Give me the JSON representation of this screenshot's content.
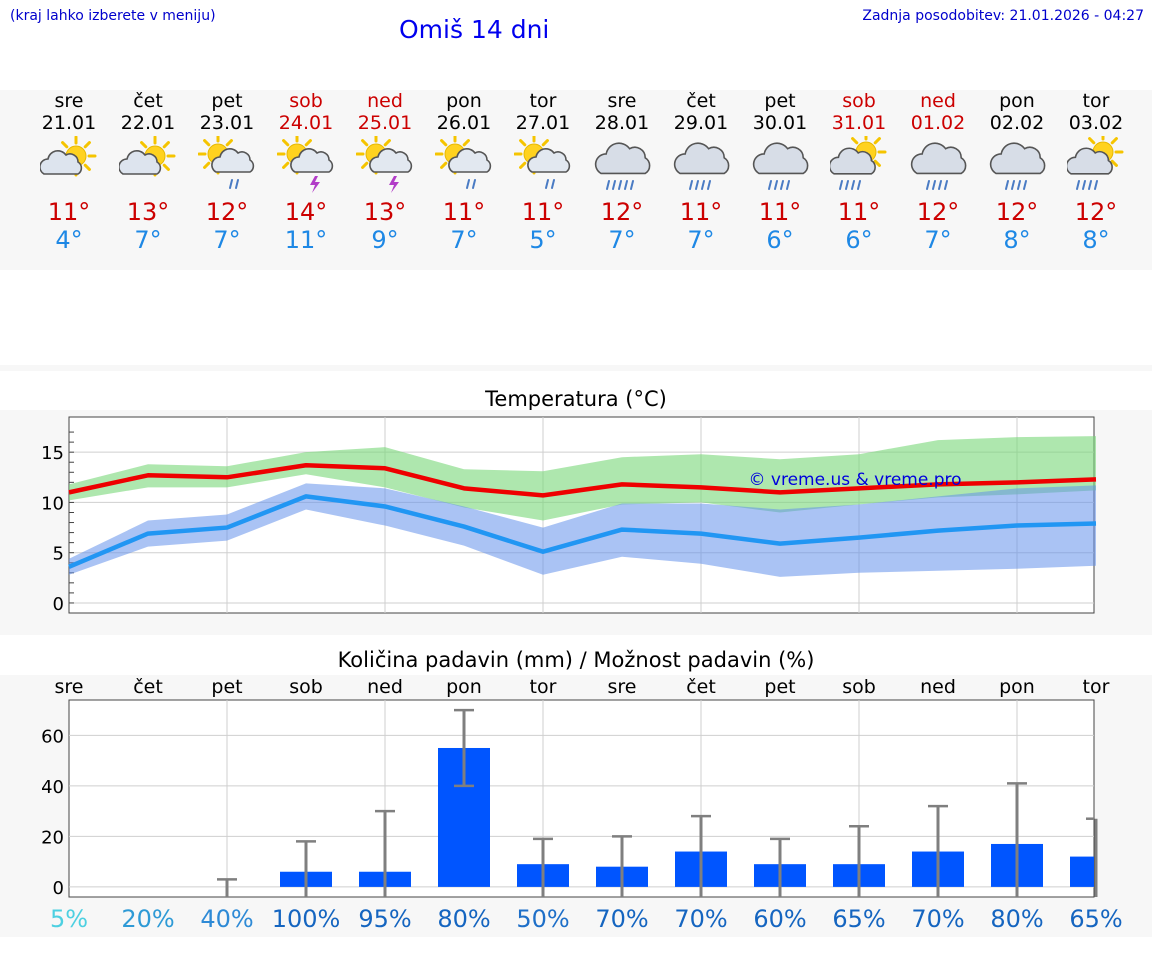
{
  "header": {
    "hint": "(kraj lahko izberete v meniju)",
    "title": "Omiš 14 dni",
    "updated": "Zadnja posodobitev: 21.01.2026 - 04:27"
  },
  "days": [
    {
      "name": "sre",
      "date": "21.01",
      "weekend": false,
      "icon": "partly-cloudy-icon",
      "tmax": "11°",
      "tmin": "4°"
    },
    {
      "name": "čet",
      "date": "22.01",
      "weekend": false,
      "icon": "partly-cloudy-icon",
      "tmax": "13°",
      "tmin": "7°"
    },
    {
      "name": "pet",
      "date": "23.01",
      "weekend": false,
      "icon": "sun-cloud-rain-icon",
      "tmax": "12°",
      "tmin": "7°"
    },
    {
      "name": "sob",
      "date": "24.01",
      "weekend": true,
      "icon": "sun-cloud-thunder-icon",
      "tmax": "14°",
      "tmin": "11°"
    },
    {
      "name": "ned",
      "date": "25.01",
      "weekend": true,
      "icon": "sun-cloud-thunder-icon",
      "tmax": "13°",
      "tmin": "9°"
    },
    {
      "name": "pon",
      "date": "26.01",
      "weekend": false,
      "icon": "sun-cloud-rain-icon",
      "tmax": "11°",
      "tmin": "7°"
    },
    {
      "name": "tor",
      "date": "27.01",
      "weekend": false,
      "icon": "sun-cloud-rain-icon",
      "tmax": "11°",
      "tmin": "5°"
    },
    {
      "name": "sre",
      "date": "28.01",
      "weekend": false,
      "icon": "cloud-heavy-rain-icon",
      "tmax": "12°",
      "tmin": "7°"
    },
    {
      "name": "čet",
      "date": "29.01",
      "weekend": false,
      "icon": "cloud-rain-icon",
      "tmax": "11°",
      "tmin": "7°"
    },
    {
      "name": "pet",
      "date": "30.01",
      "weekend": false,
      "icon": "cloud-rain-icon",
      "tmax": "11°",
      "tmin": "6°"
    },
    {
      "name": "sob",
      "date": "31.01",
      "weekend": true,
      "icon": "sun-cloud-heavy-rain-icon",
      "tmax": "11°",
      "tmin": "6°"
    },
    {
      "name": "ned",
      "date": "01.02",
      "weekend": true,
      "icon": "cloud-rain-icon",
      "tmax": "12°",
      "tmin": "7°"
    },
    {
      "name": "pon",
      "date": "02.02",
      "weekend": false,
      "icon": "cloud-rain-icon",
      "tmax": "12°",
      "tmin": "8°"
    },
    {
      "name": "tor",
      "date": "03.02",
      "weekend": false,
      "icon": "sun-cloud-heavy-rain-icon",
      "tmax": "12°",
      "tmin": "8°"
    }
  ],
  "chart_data": [
    {
      "type": "line",
      "title": "Temperatura (°C)",
      "watermark": "© vreme.us & vreme.pro",
      "ylim": [
        -1,
        18.5
      ],
      "yticks": [
        0,
        5,
        10,
        15
      ],
      "x": [
        0,
        1,
        2,
        3,
        4,
        5,
        6,
        7,
        8,
        9,
        10,
        11,
        12,
        13
      ],
      "series": [
        {
          "name": "max",
          "color": "#ee0000",
          "values": [
            11,
            12.7,
            12.5,
            13.7,
            13.4,
            11.4,
            10.7,
            11.8,
            11.5,
            11.0,
            11.4,
            11.8,
            12.0,
            12.3
          ],
          "band_low": [
            10.2,
            11.5,
            11.5,
            12.8,
            11.5,
            9.5,
            8.2,
            9.8,
            10.0,
            9.0,
            9.8,
            10.5,
            10.8,
            11.2
          ],
          "band_high": [
            11.8,
            13.8,
            13.6,
            15.0,
            15.5,
            13.3,
            13.1,
            14.5,
            14.8,
            14.3,
            14.8,
            16.2,
            16.5,
            16.6
          ],
          "band_color": "rgba(120,215,120,0.6)"
        },
        {
          "name": "min",
          "color": "#2196f3",
          "values": [
            3.6,
            6.9,
            7.5,
            10.6,
            9.6,
            7.6,
            5.1,
            7.3,
            6.9,
            5.9,
            6.5,
            7.2,
            7.7,
            7.9
          ],
          "band_low": [
            2.8,
            5.6,
            6.2,
            9.3,
            7.7,
            5.7,
            2.8,
            4.6,
            3.9,
            2.6,
            3.0,
            3.2,
            3.4,
            3.7
          ],
          "band_high": [
            4.4,
            8.2,
            8.8,
            11.9,
            11.4,
            9.6,
            7.5,
            9.9,
            9.9,
            9.3,
            9.8,
            10.6,
            11.4,
            11.7
          ],
          "band_color": "rgba(100,145,235,0.55)"
        }
      ]
    },
    {
      "type": "bar",
      "title": "Količina padavin (mm) / Možnost padavin (%)",
      "categories": [
        "sre",
        "čet",
        "pet",
        "sob",
        "ned",
        "pon",
        "tor",
        "sre",
        "čet",
        "pet",
        "sob",
        "ned",
        "pon",
        "tor"
      ],
      "ylim": [
        -4,
        74
      ],
      "yticks": [
        0,
        20,
        40,
        60
      ],
      "values": [
        0,
        0,
        0,
        6,
        6,
        55,
        9,
        8,
        14,
        9,
        9,
        14,
        17,
        12
      ],
      "err_low": [
        0,
        0,
        0,
        0,
        0,
        40,
        0,
        0,
        0,
        0,
        0,
        0,
        0,
        0
      ],
      "err_high": [
        0,
        0,
        3,
        18,
        30,
        70,
        19,
        20,
        28,
        19,
        24,
        32,
        41,
        27
      ],
      "bar_color": "#0055ff",
      "chance": [
        "5%",
        "20%",
        "40%",
        "100%",
        "95%",
        "80%",
        "50%",
        "70%",
        "70%",
        "60%",
        "65%",
        "70%",
        "80%",
        "65%"
      ],
      "chance_colors": [
        "#4dd0e1",
        "#2e9ad6",
        "#2e8ad6",
        "#1565c0",
        "#1565c0",
        "#1565c0",
        "#1e6fc8",
        "#1565c0",
        "#1565c0",
        "#1565c0",
        "#1565c0",
        "#1565c0",
        "#1565c0",
        "#1565c0"
      ]
    }
  ]
}
